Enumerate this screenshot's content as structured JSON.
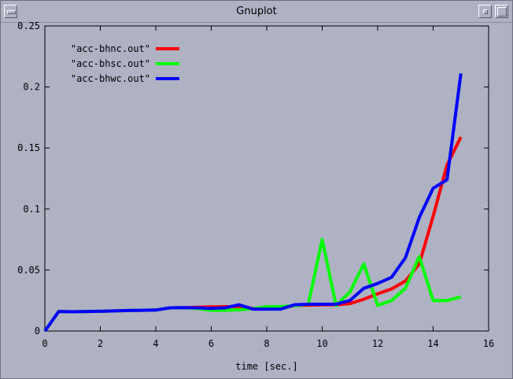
{
  "window": {
    "title": "Gnuplot"
  },
  "chart_data": {
    "type": "line",
    "title": "",
    "xlabel": "time [sec.]",
    "ylabel": "",
    "xlim": [
      0,
      16
    ],
    "ylim": [
      0,
      0.25
    ],
    "xticks": [
      "0",
      "2",
      "4",
      "6",
      "8",
      "10",
      "12",
      "14",
      "16"
    ],
    "yticks": [
      "0",
      "0.05",
      "0.1",
      "0.15",
      "0.2",
      "0.25"
    ],
    "grid": false,
    "legend_position": "top-left",
    "series": [
      {
        "name": "\"acc-bhnc.out\"",
        "color": "#ff0000",
        "x": [
          0,
          0.5,
          1,
          1.5,
          2,
          2.5,
          3,
          3.5,
          4,
          4.5,
          5,
          5.5,
          6,
          6.5,
          7,
          7.5,
          8,
          8.5,
          9,
          9.5,
          10,
          10.5,
          11,
          11.5,
          12,
          12.5,
          13,
          13.5,
          14,
          14.5,
          15
        ],
        "y": [
          0,
          0.016,
          0.0158,
          0.016,
          0.0162,
          0.0165,
          0.0168,
          0.017,
          0.0172,
          0.019,
          0.0192,
          0.0195,
          0.0198,
          0.02,
          0.02,
          0.0185,
          0.0183,
          0.0185,
          0.021,
          0.0212,
          0.0215,
          0.0215,
          0.0225,
          0.026,
          0.0305,
          0.0345,
          0.041,
          0.055,
          0.094,
          0.136,
          0.159
        ]
      },
      {
        "name": "\"acc-bhsc.out\"",
        "color": "#00ff00",
        "x": [
          0,
          0.5,
          1,
          1.5,
          2,
          2.5,
          3,
          3.5,
          4,
          4.5,
          5,
          5.5,
          6,
          6.5,
          7,
          7.5,
          8,
          8.5,
          9,
          9.5,
          10,
          10.5,
          11,
          11.5,
          12,
          12.5,
          13,
          13.5,
          14,
          14.5,
          15
        ],
        "y": [
          0,
          0.016,
          0.0158,
          0.016,
          0.0162,
          0.0165,
          0.0168,
          0.017,
          0.0172,
          0.019,
          0.0192,
          0.0185,
          0.017,
          0.017,
          0.0175,
          0.0183,
          0.02,
          0.02,
          0.0208,
          0.022,
          0.075,
          0.021,
          0.032,
          0.055,
          0.021,
          0.025,
          0.035,
          0.061,
          0.025,
          0.025,
          0.028
        ]
      },
      {
        "name": "\"acc-bhwc.out\"",
        "color": "#0000ff",
        "x": [
          0,
          0.5,
          1,
          1.5,
          2,
          2.5,
          3,
          3.5,
          4,
          4.5,
          5,
          5.5,
          6,
          6.5,
          7,
          7.5,
          8,
          8.5,
          9,
          9.5,
          10,
          10.5,
          11,
          11.5,
          12,
          12.5,
          13,
          13.5,
          14,
          14.5,
          15
        ],
        "y": [
          0,
          0.016,
          0.0158,
          0.016,
          0.0162,
          0.0165,
          0.0168,
          0.017,
          0.0172,
          0.019,
          0.0192,
          0.019,
          0.0185,
          0.019,
          0.0215,
          0.018,
          0.018,
          0.018,
          0.0215,
          0.022,
          0.022,
          0.022,
          0.025,
          0.035,
          0.039,
          0.044,
          0.06,
          0.093,
          0.117,
          0.124,
          0.211
        ]
      }
    ]
  }
}
